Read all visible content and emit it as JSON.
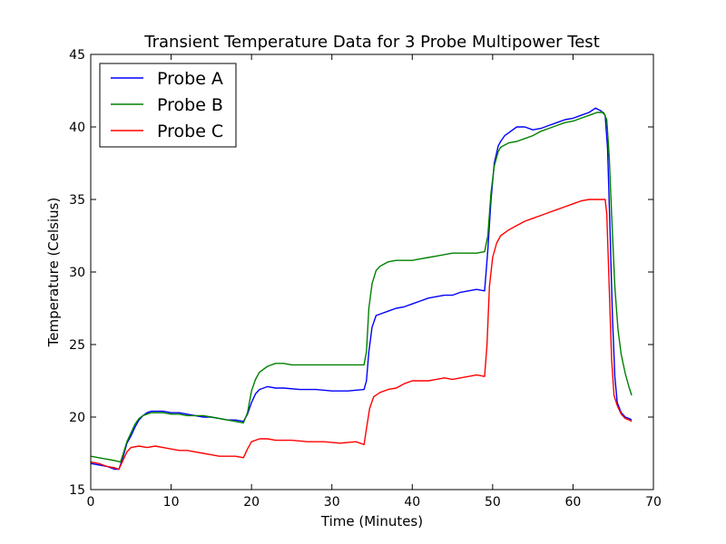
{
  "chart_data": {
    "type": "line",
    "title": "Transient Temperature Data for 3 Probe Multipower Test",
    "xlabel": "Time (Minutes)",
    "ylabel": "Temperature (Celsius)",
    "xlim": [
      0,
      70
    ],
    "ylim": [
      15,
      45
    ],
    "xticks": [
      "0",
      "10",
      "20",
      "30",
      "40",
      "50",
      "60",
      "70"
    ],
    "yticks": [
      "15",
      "20",
      "25",
      "30",
      "35",
      "40",
      "45"
    ],
    "grid": false,
    "legend_position": "top-left",
    "series": [
      {
        "name": "Probe A",
        "color": "#0000ff",
        "points": [
          [
            0,
            16.8
          ],
          [
            1,
            16.7
          ],
          [
            2,
            16.6
          ],
          [
            3,
            16.4
          ],
          [
            3.5,
            16.4
          ],
          [
            4,
            17.2
          ],
          [
            4.5,
            18.2
          ],
          [
            5,
            18.7
          ],
          [
            5.5,
            19.3
          ],
          [
            6,
            19.8
          ],
          [
            6.5,
            20.1
          ],
          [
            7,
            20.3
          ],
          [
            7.5,
            20.4
          ],
          [
            8,
            20.4
          ],
          [
            9,
            20.4
          ],
          [
            10,
            20.3
          ],
          [
            11,
            20.3
          ],
          [
            12,
            20.2
          ],
          [
            13,
            20.1
          ],
          [
            14,
            20.0
          ],
          [
            15,
            20.0
          ],
          [
            16,
            19.9
          ],
          [
            17,
            19.8
          ],
          [
            18,
            19.8
          ],
          [
            19,
            19.7
          ],
          [
            19.5,
            20.2
          ],
          [
            20,
            21.0
          ],
          [
            20.5,
            21.6
          ],
          [
            21,
            21.9
          ],
          [
            22,
            22.1
          ],
          [
            23,
            22.0
          ],
          [
            24,
            22.0
          ],
          [
            26,
            21.9
          ],
          [
            28,
            21.9
          ],
          [
            30,
            21.8
          ],
          [
            32,
            21.8
          ],
          [
            34,
            21.9
          ],
          [
            34.3,
            22.5
          ],
          [
            34.6,
            24.5
          ],
          [
            35,
            26.2
          ],
          [
            35.5,
            27.0
          ],
          [
            36,
            27.1
          ],
          [
            37,
            27.3
          ],
          [
            38,
            27.5
          ],
          [
            39,
            27.6
          ],
          [
            40,
            27.8
          ],
          [
            41,
            28.0
          ],
          [
            42,
            28.2
          ],
          [
            43,
            28.3
          ],
          [
            44,
            28.4
          ],
          [
            45,
            28.4
          ],
          [
            46,
            28.6
          ],
          [
            47,
            28.7
          ],
          [
            48,
            28.8
          ],
          [
            49,
            28.7
          ],
          [
            49.4,
            31.5
          ],
          [
            49.8,
            35.0
          ],
          [
            50.2,
            37.5
          ],
          [
            50.7,
            38.7
          ],
          [
            51,
            39.0
          ],
          [
            51.5,
            39.4
          ],
          [
            52,
            39.6
          ],
          [
            53,
            40.0
          ],
          [
            54,
            40.0
          ],
          [
            55,
            39.8
          ],
          [
            56,
            39.9
          ],
          [
            57,
            40.1
          ],
          [
            58,
            40.3
          ],
          [
            59,
            40.5
          ],
          [
            60,
            40.6
          ],
          [
            61,
            40.8
          ],
          [
            62,
            41.0
          ],
          [
            62.8,
            41.3
          ],
          [
            63.5,
            41.1
          ],
          [
            64,
            40.8
          ],
          [
            64.3,
            38.5
          ],
          [
            64.6,
            33.0
          ],
          [
            64.9,
            27.0
          ],
          [
            65.2,
            22.8
          ],
          [
            65.5,
            21.0
          ],
          [
            66,
            20.3
          ],
          [
            66.5,
            20.0
          ],
          [
            67,
            19.9
          ],
          [
            67.3,
            19.8
          ]
        ]
      },
      {
        "name": "Probe B",
        "color": "#008000",
        "points": [
          [
            0,
            17.3
          ],
          [
            1,
            17.2
          ],
          [
            2,
            17.1
          ],
          [
            3,
            17.0
          ],
          [
            3.7,
            16.9
          ],
          [
            4,
            17.4
          ],
          [
            4.5,
            18.3
          ],
          [
            5,
            18.9
          ],
          [
            5.5,
            19.5
          ],
          [
            6,
            19.9
          ],
          [
            6.5,
            20.1
          ],
          [
            7,
            20.2
          ],
          [
            7.5,
            20.3
          ],
          [
            8,
            20.3
          ],
          [
            9,
            20.3
          ],
          [
            10,
            20.2
          ],
          [
            11,
            20.2
          ],
          [
            12,
            20.1
          ],
          [
            13,
            20.1
          ],
          [
            14,
            20.1
          ],
          [
            15,
            20.0
          ],
          [
            16,
            19.9
          ],
          [
            17,
            19.8
          ],
          [
            18,
            19.7
          ],
          [
            19,
            19.6
          ],
          [
            19.5,
            20.3
          ],
          [
            20,
            21.8
          ],
          [
            20.5,
            22.6
          ],
          [
            21,
            23.1
          ],
          [
            22,
            23.5
          ],
          [
            23,
            23.7
          ],
          [
            24,
            23.7
          ],
          [
            25,
            23.6
          ],
          [
            27,
            23.6
          ],
          [
            29,
            23.6
          ],
          [
            31,
            23.6
          ],
          [
            33,
            23.6
          ],
          [
            34,
            23.6
          ],
          [
            34.3,
            24.5
          ],
          [
            34.6,
            27.5
          ],
          [
            35,
            29.2
          ],
          [
            35.5,
            30.1
          ],
          [
            36,
            30.4
          ],
          [
            37,
            30.7
          ],
          [
            38,
            30.8
          ],
          [
            39,
            30.8
          ],
          [
            40,
            30.8
          ],
          [
            41,
            30.9
          ],
          [
            42,
            31.0
          ],
          [
            43,
            31.1
          ],
          [
            44,
            31.2
          ],
          [
            45,
            31.3
          ],
          [
            46,
            31.3
          ],
          [
            47,
            31.3
          ],
          [
            48,
            31.3
          ],
          [
            49,
            31.4
          ],
          [
            49.4,
            32.5
          ],
          [
            49.8,
            35.5
          ],
          [
            50.2,
            37.3
          ],
          [
            50.7,
            38.3
          ],
          [
            51,
            38.6
          ],
          [
            52,
            38.9
          ],
          [
            53,
            39.0
          ],
          [
            54,
            39.2
          ],
          [
            55,
            39.4
          ],
          [
            56,
            39.7
          ],
          [
            57,
            39.9
          ],
          [
            58,
            40.1
          ],
          [
            59,
            40.3
          ],
          [
            60,
            40.4
          ],
          [
            61,
            40.6
          ],
          [
            62,
            40.8
          ],
          [
            63,
            41.0
          ],
          [
            63.8,
            41.0
          ],
          [
            64.2,
            40.5
          ],
          [
            64.5,
            38.0
          ],
          [
            64.8,
            34.0
          ],
          [
            65.2,
            29.0
          ],
          [
            65.6,
            26.0
          ],
          [
            66,
            24.3
          ],
          [
            66.5,
            23.0
          ],
          [
            67,
            22.0
          ],
          [
            67.3,
            21.5
          ]
        ]
      },
      {
        "name": "Probe C",
        "color": "#ff0000",
        "points": [
          [
            0,
            16.9
          ],
          [
            1,
            16.8
          ],
          [
            2,
            16.6
          ],
          [
            3,
            16.5
          ],
          [
            3.5,
            16.4
          ],
          [
            4,
            17.0
          ],
          [
            4.5,
            17.6
          ],
          [
            5,
            17.9
          ],
          [
            6,
            18.0
          ],
          [
            7,
            17.9
          ],
          [
            8,
            18.0
          ],
          [
            9,
            17.9
          ],
          [
            10,
            17.8
          ],
          [
            11,
            17.7
          ],
          [
            12,
            17.7
          ],
          [
            13,
            17.6
          ],
          [
            14,
            17.5
          ],
          [
            15,
            17.4
          ],
          [
            16,
            17.3
          ],
          [
            17,
            17.3
          ],
          [
            18,
            17.3
          ],
          [
            19,
            17.2
          ],
          [
            19.5,
            17.8
          ],
          [
            20,
            18.3
          ],
          [
            21,
            18.5
          ],
          [
            22,
            18.5
          ],
          [
            23,
            18.4
          ],
          [
            25,
            18.4
          ],
          [
            27,
            18.3
          ],
          [
            29,
            18.3
          ],
          [
            31,
            18.2
          ],
          [
            33,
            18.3
          ],
          [
            34,
            18.1
          ],
          [
            34.3,
            19.2
          ],
          [
            34.7,
            20.6
          ],
          [
            35.2,
            21.4
          ],
          [
            36,
            21.7
          ],
          [
            37,
            21.9
          ],
          [
            38,
            22.0
          ],
          [
            39,
            22.3
          ],
          [
            40,
            22.5
          ],
          [
            41,
            22.5
          ],
          [
            42,
            22.5
          ],
          [
            43,
            22.6
          ],
          [
            44,
            22.7
          ],
          [
            45,
            22.6
          ],
          [
            46,
            22.7
          ],
          [
            47,
            22.8
          ],
          [
            48,
            22.9
          ],
          [
            49,
            22.8
          ],
          [
            49.3,
            25.0
          ],
          [
            49.6,
            29.0
          ],
          [
            50,
            31.0
          ],
          [
            50.5,
            32.0
          ],
          [
            51,
            32.5
          ],
          [
            52,
            32.9
          ],
          [
            53,
            33.2
          ],
          [
            54,
            33.5
          ],
          [
            55,
            33.7
          ],
          [
            56,
            33.9
          ],
          [
            57,
            34.1
          ],
          [
            58,
            34.3
          ],
          [
            59,
            34.5
          ],
          [
            60,
            34.7
          ],
          [
            61,
            34.9
          ],
          [
            62,
            35.0
          ],
          [
            63,
            35.0
          ],
          [
            64,
            35.0
          ],
          [
            64.2,
            34.0
          ],
          [
            64.5,
            29.0
          ],
          [
            64.8,
            24.0
          ],
          [
            65.1,
            21.5
          ],
          [
            65.5,
            20.8
          ],
          [
            66,
            20.2
          ],
          [
            66.5,
            19.9
          ],
          [
            67,
            19.8
          ],
          [
            67.3,
            19.7
          ]
        ]
      }
    ]
  }
}
